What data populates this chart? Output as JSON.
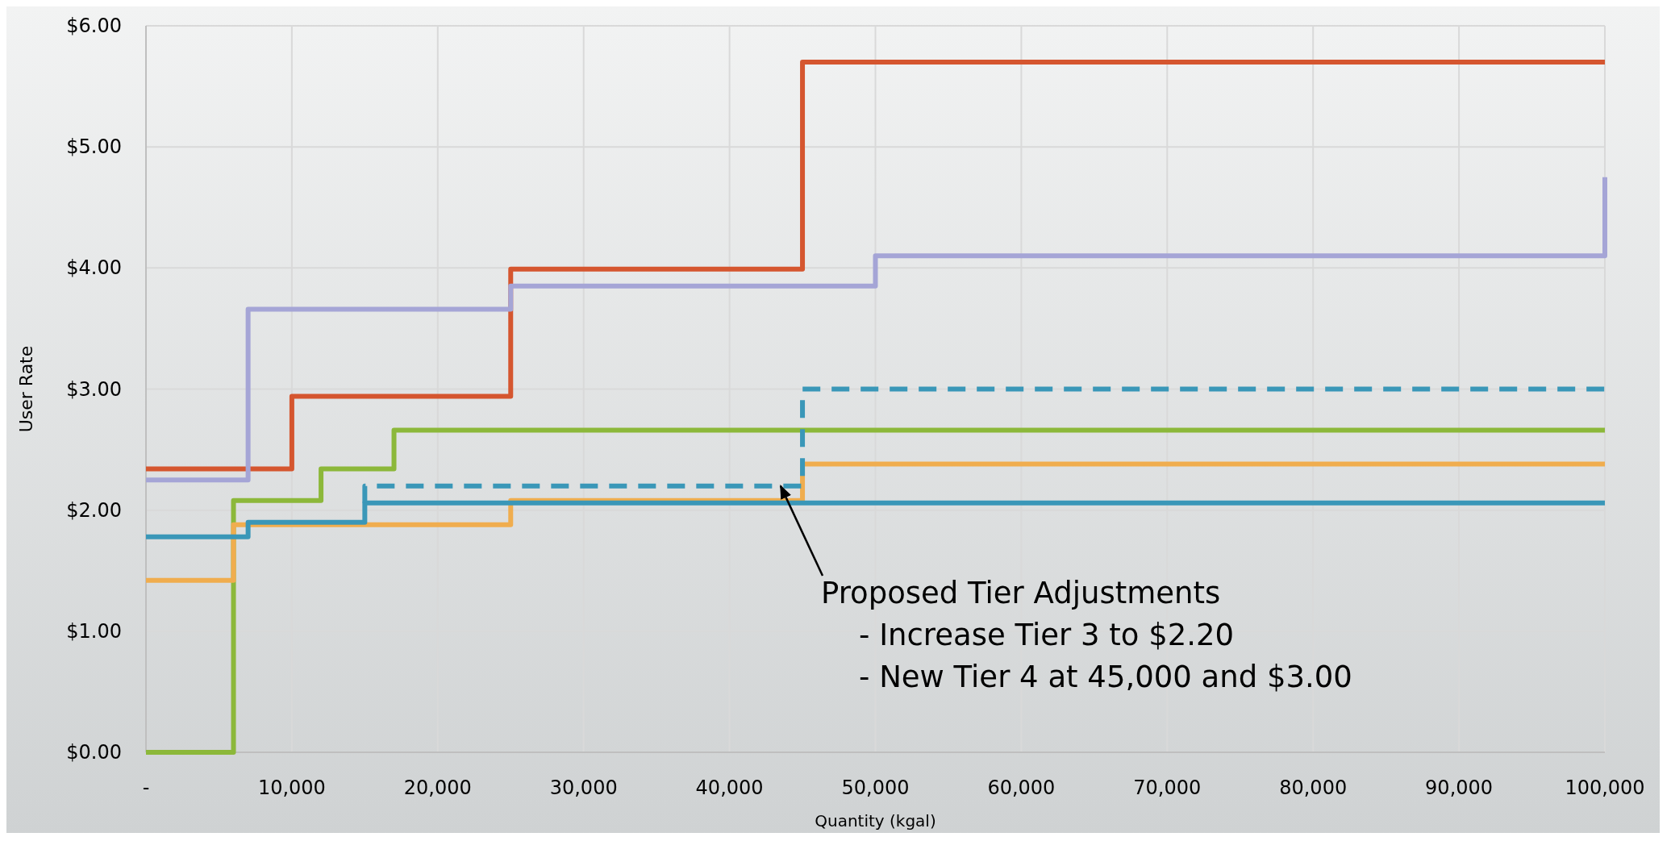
{
  "chart_data": {
    "type": "step",
    "xlabel": "Quantity (kgal)",
    "ylabel": "User Rate",
    "xlim": [
      0,
      100000
    ],
    "ylim": [
      0,
      6
    ],
    "xticks": [
      {
        "value": 0,
        "label": "-"
      },
      {
        "value": 10000,
        "label": "10,000"
      },
      {
        "value": 20000,
        "label": "20,000"
      },
      {
        "value": 30000,
        "label": "30,000"
      },
      {
        "value": 40000,
        "label": "40,000"
      },
      {
        "value": 50000,
        "label": "50,000"
      },
      {
        "value": 60000,
        "label": "60,000"
      },
      {
        "value": 70000,
        "label": "70,000"
      },
      {
        "value": 80000,
        "label": "80,000"
      },
      {
        "value": 90000,
        "label": "90,000"
      },
      {
        "value": 100000,
        "label": "100,000"
      }
    ],
    "yticks": [
      {
        "value": 0,
        "label": "$0.00"
      },
      {
        "value": 1,
        "label": "$1.00"
      },
      {
        "value": 2,
        "label": "$2.00"
      },
      {
        "value": 3,
        "label": "$3.00"
      },
      {
        "value": 4,
        "label": "$4.00"
      },
      {
        "value": 5,
        "label": "$5.00"
      },
      {
        "value": 6,
        "label": "$6.00"
      }
    ],
    "grid": true,
    "series": [
      {
        "color": "#d5562f",
        "x": [
          0,
          10000,
          25000,
          45000,
          100000
        ],
        "values": [
          2.34,
          2.94,
          3.99,
          5.7,
          5.7
        ]
      },
      {
        "color": "#a5a5d6",
        "x": [
          0,
          7000,
          25000,
          50000,
          100000,
          100000
        ],
        "values": [
          2.25,
          3.66,
          3.85,
          4.1,
          4.1,
          4.75
        ]
      },
      {
        "color": "#8cb83a",
        "x": [
          0,
          6000,
          12000,
          17000,
          100000
        ],
        "values": [
          0,
          2.08,
          2.34,
          2.66,
          2.66
        ]
      },
      {
        "color": "#f0ad4e",
        "x": [
          0,
          6000,
          25000,
          45000,
          100000
        ],
        "values": [
          1.42,
          1.88,
          2.08,
          2.38,
          2.38
        ]
      },
      {
        "color": "#3a97b8",
        "x": [
          0,
          7000,
          15000,
          100000
        ],
        "values": [
          1.78,
          1.9,
          2.06,
          2.06
        ]
      },
      {
        "color": "#3a97b8",
        "line_style": "dashed",
        "x": [
          15000,
          15000,
          45000,
          100000
        ],
        "values": [
          2.06,
          2.2,
          3.0,
          3.0
        ]
      }
    ],
    "annotations": [
      {
        "text": "Proposed Tier Adjustments\n    - Increase Tier 3 to $2.20\n    - New Tier 4 at 45,000 and $3.00",
        "x": 43500,
        "y": 2.2
      }
    ]
  }
}
